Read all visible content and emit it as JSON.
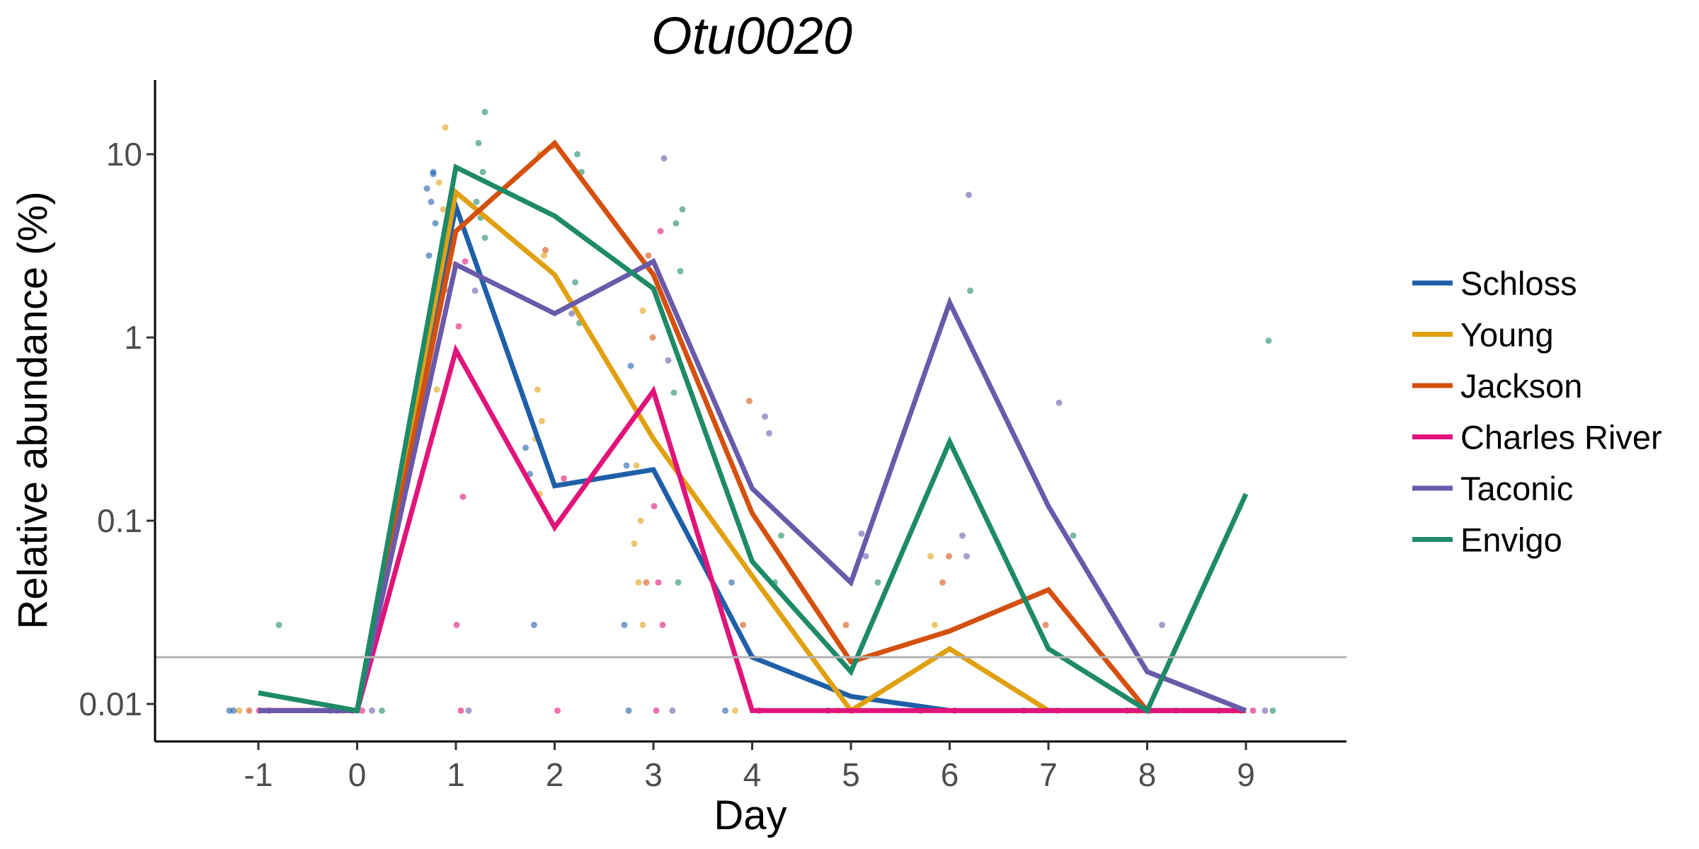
{
  "chart_data": {
    "type": "line",
    "title": "Otu0020",
    "xlabel": "Day",
    "ylabel": "Relative abundance (%)",
    "y_scale": "log",
    "xlim": [
      -2,
      10
    ],
    "ylim": [
      0.006,
      25
    ],
    "x_ticks": [
      -1,
      0,
      1,
      2,
      3,
      4,
      5,
      6,
      7,
      8,
      9
    ],
    "x_tick_labels": [
      "-1",
      "0",
      "1",
      "2",
      "3",
      "4",
      "5",
      "6",
      "7",
      "8",
      "9"
    ],
    "y_ticks": [
      0.01,
      0.1,
      1,
      10
    ],
    "y_tick_labels": [
      "0.01",
      "0.1",
      "1",
      "10"
    ],
    "limit_of_detection": 0.018,
    "limit_line_color": "#b3b3b3",
    "grid": false,
    "legend_position": "right",
    "x": [
      -1,
      0,
      1,
      2,
      3,
      4,
      5,
      6,
      7,
      8,
      9
    ],
    "series": [
      {
        "name": "Schloss",
        "color": "#1f5fa8",
        "values": [
          0.0092,
          0.0092,
          5.2,
          0.155,
          0.19,
          0.018,
          0.011,
          0.0092,
          0.0092,
          0.0092,
          0.0092
        ],
        "points": [
          [
            -1,
            0.0092
          ],
          [
            -1,
            0.0092
          ],
          [
            0,
            0.0092
          ],
          [
            0,
            0.0092
          ],
          [
            1,
            8
          ],
          [
            1,
            6.5
          ],
          [
            1,
            5.5
          ],
          [
            1,
            4.2
          ],
          [
            1,
            2.8
          ],
          [
            1,
            7.8
          ],
          [
            2,
            0.25
          ],
          [
            2,
            0.18
          ],
          [
            2,
            0.027
          ],
          [
            3,
            0.2
          ],
          [
            3,
            0.7
          ],
          [
            3,
            0.027
          ],
          [
            3,
            0.0092
          ],
          [
            4,
            0.046
          ],
          [
            4,
            0.0092
          ],
          [
            5,
            0.0092
          ],
          [
            6,
            0.0092
          ],
          [
            7,
            0.0092
          ],
          [
            8,
            0.0092
          ],
          [
            9,
            0.0092
          ]
        ]
      },
      {
        "name": "Young",
        "color": "#e0a010",
        "values": [
          0.0092,
          0.0092,
          6.2,
          2.2,
          0.28,
          0.05,
          0.0092,
          0.02,
          0.0092,
          0.0092,
          0.0092
        ],
        "points": [
          [
            -1,
            0.0092
          ],
          [
            0,
            0.0092
          ],
          [
            1,
            14
          ],
          [
            1,
            7
          ],
          [
            1,
            5
          ],
          [
            1,
            0.52
          ],
          [
            2,
            10
          ],
          [
            2,
            2.8
          ],
          [
            2,
            0.52
          ],
          [
            2,
            0.35
          ],
          [
            2,
            0.28
          ],
          [
            2,
            0.14
          ],
          [
            3,
            1.4
          ],
          [
            3,
            0.2
          ],
          [
            3,
            0.1
          ],
          [
            3,
            0.075
          ],
          [
            3,
            0.046
          ],
          [
            3,
            0.027
          ],
          [
            4,
            0.0092
          ],
          [
            5,
            0.0092
          ],
          [
            6,
            0.064
          ],
          [
            6,
            0.027
          ],
          [
            7,
            0.0092
          ],
          [
            8,
            0.0092
          ],
          [
            9,
            0.0092
          ]
        ]
      },
      {
        "name": "Jackson",
        "color": "#d4500f",
        "values": [
          0.0092,
          0.0092,
          3.8,
          11.5,
          2.2,
          0.11,
          0.017,
          0.025,
          0.042,
          0.0092,
          0.0092
        ],
        "points": [
          [
            -1,
            0.0092
          ],
          [
            0,
            0.0092
          ],
          [
            1,
            2.5
          ],
          [
            1,
            1.8
          ],
          [
            2,
            11
          ],
          [
            2,
            3
          ],
          [
            3,
            2.8
          ],
          [
            3,
            1.0
          ],
          [
            3,
            0.046
          ],
          [
            4,
            0.45
          ],
          [
            4,
            0.027
          ],
          [
            5,
            0.027
          ],
          [
            6,
            0.064
          ],
          [
            6,
            0.046
          ],
          [
            7,
            0.027
          ],
          [
            8,
            0.0092
          ],
          [
            9,
            0.0092
          ]
        ]
      },
      {
        "name": "Charles River",
        "color": "#e0147a",
        "values": [
          0.0092,
          0.0092,
          0.85,
          0.092,
          0.51,
          0.0092,
          0.0092,
          0.0092,
          0.0092,
          0.0092,
          0.0092
        ],
        "points": [
          [
            -1,
            0.0092
          ],
          [
            0,
            0.0092
          ],
          [
            1,
            2.6
          ],
          [
            1,
            1.15
          ],
          [
            1,
            0.135
          ],
          [
            1,
            0.027
          ],
          [
            1,
            0.0092
          ],
          [
            2,
            0.17
          ],
          [
            2,
            0.0092
          ],
          [
            3,
            3.8
          ],
          [
            3,
            0.12
          ],
          [
            3,
            0.046
          ],
          [
            3,
            0.027
          ],
          [
            3,
            0.0092
          ],
          [
            4,
            0.0092
          ],
          [
            5,
            0.0092
          ],
          [
            6,
            0.0092
          ],
          [
            7,
            0.0092
          ],
          [
            8,
            0.0092
          ],
          [
            9,
            0.0092
          ]
        ]
      },
      {
        "name": "Taconic",
        "color": "#6a5aaa",
        "values": [
          0.0092,
          0.0092,
          2.5,
          1.35,
          2.6,
          0.15,
          0.046,
          1.55,
          0.12,
          0.015,
          0.0092
        ],
        "points": [
          [
            -1,
            0.0092
          ],
          [
            0,
            0.0092
          ],
          [
            1,
            1.8
          ],
          [
            1,
            0.0092
          ],
          [
            2,
            1.35
          ],
          [
            3,
            9.5
          ],
          [
            3,
            0.75
          ],
          [
            3,
            0.0092
          ],
          [
            4,
            0.37
          ],
          [
            4,
            0.3
          ],
          [
            5,
            0.085
          ],
          [
            5,
            0.064
          ],
          [
            6,
            6
          ],
          [
            6,
            0.083
          ],
          [
            6,
            0.064
          ],
          [
            7,
            0.44
          ],
          [
            8,
            0.027
          ],
          [
            9,
            0.0092
          ]
        ]
      },
      {
        "name": "Envigo",
        "color": "#1e8a68",
        "values": [
          0.0115,
          0.0092,
          8.5,
          4.6,
          1.85,
          0.06,
          0.015,
          0.27,
          0.02,
          0.0092,
          0.14
        ],
        "points": [
          [
            -1,
            0.027
          ],
          [
            0,
            0.0092
          ],
          [
            1,
            17
          ],
          [
            1,
            11.5
          ],
          [
            1,
            8
          ],
          [
            1,
            5.5
          ],
          [
            1,
            4.5
          ],
          [
            1,
            3.5
          ],
          [
            2,
            10
          ],
          [
            2,
            8
          ],
          [
            2,
            2
          ],
          [
            2,
            1.2
          ],
          [
            3,
            5
          ],
          [
            3,
            4.2
          ],
          [
            3,
            2.3
          ],
          [
            3,
            0.5
          ],
          [
            3,
            0.046
          ],
          [
            4,
            0.083
          ],
          [
            4,
            0.046
          ],
          [
            5,
            0.046
          ],
          [
            6,
            1.8
          ],
          [
            7,
            0.083
          ],
          [
            8,
            0.0092
          ],
          [
            9,
            0.96
          ],
          [
            9,
            0.0092
          ]
        ]
      }
    ]
  }
}
